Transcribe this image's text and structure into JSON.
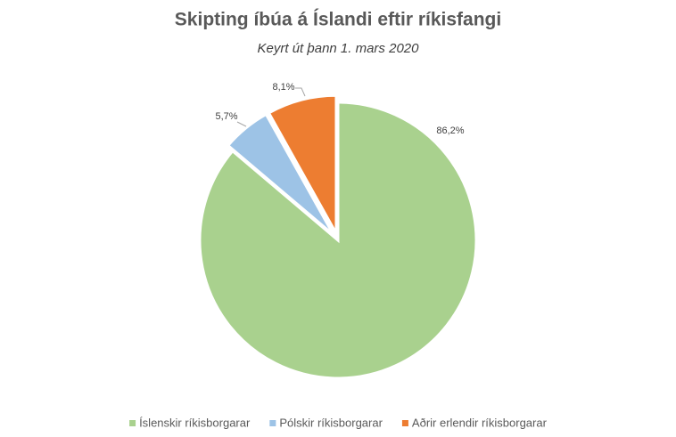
{
  "chart_data": {
    "type": "pie",
    "title": "Skipting íbúa á Íslandi eftir ríkisfangi",
    "subtitle": "Keyrt út þann 1. mars 2020",
    "categories": [
      "Íslenskir ríkisborgarar",
      "Pólskir ríkisborgarar",
      "Aðrir erlendir ríkisborgarar"
    ],
    "values": [
      86.2,
      5.7,
      8.1
    ],
    "value_labels": [
      "86,2%",
      "5,7%",
      "8,1%"
    ],
    "colors": [
      "#a9d18e",
      "#9dc3e6",
      "#ed7d31"
    ]
  }
}
